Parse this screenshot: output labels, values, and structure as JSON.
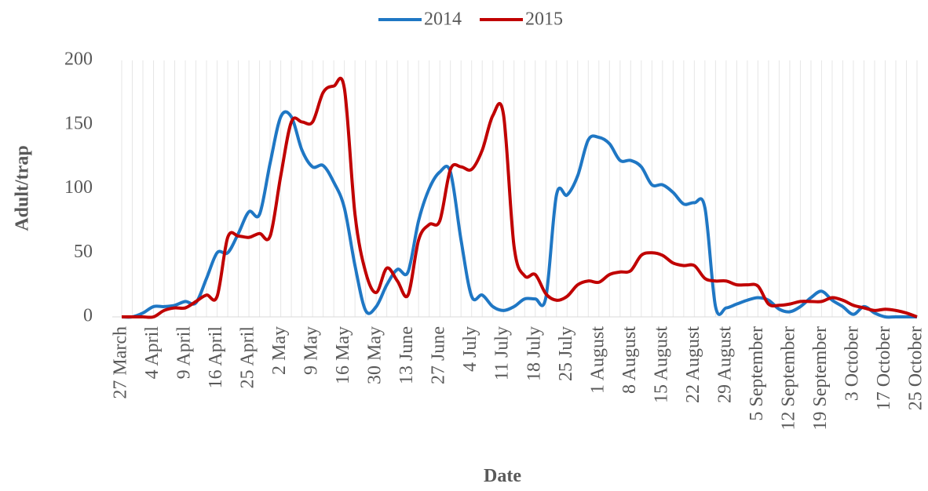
{
  "chart_data": {
    "type": "line",
    "x_label": "Date",
    "y_label": "Adult/trap",
    "ylim": [
      0,
      200
    ],
    "yticks": [
      0,
      50,
      100,
      150,
      200
    ],
    "grid": "x",
    "legend": "top",
    "categories": [
      "27 March",
      null,
      null,
      "4 April",
      null,
      null,
      "9 April",
      null,
      null,
      "16 April",
      null,
      null,
      "25 April",
      null,
      null,
      "2 May",
      null,
      null,
      "9 May",
      null,
      null,
      "16 May",
      null,
      null,
      "30 May",
      null,
      null,
      "13 June",
      null,
      null,
      "27 June",
      null,
      null,
      "4 July",
      null,
      null,
      "11 July",
      null,
      null,
      "18 July",
      null,
      null,
      "25 July",
      null,
      null,
      "1 August",
      null,
      null,
      "8 August",
      null,
      null,
      "15 August",
      null,
      null,
      "22 August",
      null,
      null,
      "29 August",
      null,
      null,
      "5 September",
      null,
      null,
      "12 September",
      null,
      null,
      "19 September",
      null,
      null,
      "3 October",
      null,
      null,
      "17 October",
      null,
      null,
      "25 October"
    ],
    "series": [
      {
        "name": "2014",
        "color": "#1f77c4",
        "values": [
          0,
          0,
          3,
          8,
          8,
          9,
          12,
          11,
          30,
          50,
          50,
          65,
          82,
          80,
          120,
          156,
          156,
          130,
          117,
          118,
          105,
          85,
          40,
          5,
          8,
          25,
          37,
          35,
          75,
          100,
          113,
          113,
          60,
          16,
          17,
          8,
          5,
          8,
          14,
          14,
          15,
          95,
          95,
          110,
          138,
          140,
          135,
          122,
          122,
          117,
          103,
          103,
          97,
          88,
          89,
          85,
          8,
          7,
          10,
          13,
          15,
          13,
          6,
          4,
          8,
          15,
          20,
          13,
          8,
          2,
          8,
          3,
          0,
          0,
          0,
          0
        ]
      },
      {
        "name": "2015",
        "color": "#c00000",
        "values": [
          0,
          0,
          0,
          0,
          5,
          7,
          7,
          12,
          17,
          16,
          62,
          63,
          62,
          65,
          63,
          110,
          152,
          152,
          152,
          175,
          180,
          178,
          80,
          35,
          19,
          38,
          28,
          17,
          60,
          72,
          75,
          115,
          117,
          115,
          130,
          157,
          158,
          55,
          32,
          33,
          18,
          13,
          16,
          25,
          28,
          27,
          33,
          35,
          36,
          48,
          50,
          48,
          42,
          40,
          40,
          30,
          28,
          28,
          25,
          25,
          24,
          10,
          9,
          10,
          12,
          12,
          12,
          15,
          13,
          9,
          7,
          5,
          6,
          5,
          3,
          0
        ]
      }
    ]
  }
}
